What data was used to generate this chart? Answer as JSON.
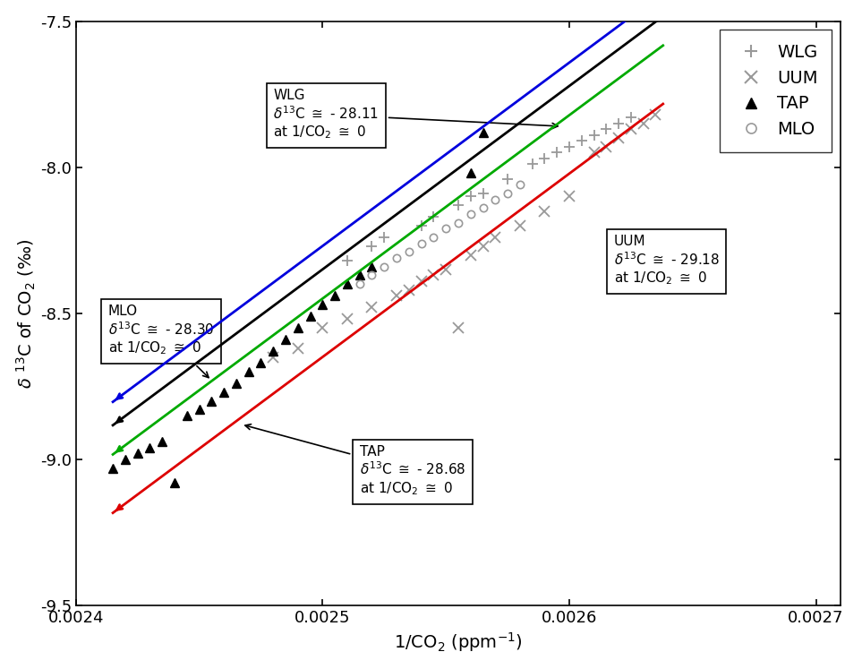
{
  "xlim": [
    0.0024,
    0.00271
  ],
  "ylim": [
    -9.5,
    -7.5
  ],
  "xlabel": "1/CO$_2$ (ppm$^{-1}$)",
  "ylabel": "$\\delta$ $^{13}$C of CO$_2$ (\\u2030)",
  "xticks": [
    0.0024,
    0.0025,
    0.0026,
    0.0027
  ],
  "yticks": [
    -9.5,
    -9.0,
    -8.5,
    -8.0,
    -7.5
  ],
  "WLG_x": [
    0.00251,
    0.00252,
    0.002525,
    0.00254,
    0.002545,
    0.002555,
    0.00256,
    0.002565,
    0.002575,
    0.002585,
    0.00259,
    0.002595,
    0.0026,
    0.002605,
    0.00261,
    0.002615,
    0.00262,
    0.002625
  ],
  "WLG_y": [
    -8.32,
    -8.27,
    -8.24,
    -8.2,
    -8.17,
    -8.13,
    -8.1,
    -8.09,
    -8.04,
    -7.99,
    -7.97,
    -7.95,
    -7.93,
    -7.91,
    -7.89,
    -7.87,
    -7.85,
    -7.83
  ],
  "UUM_x": [
    0.00248,
    0.00249,
    0.0025,
    0.00251,
    0.00252,
    0.00253,
    0.002535,
    0.00254,
    0.002545,
    0.00255,
    0.002555,
    0.00256,
    0.002565,
    0.00257,
    0.00258,
    0.00259,
    0.0026,
    0.00261,
    0.002615,
    0.00262,
    0.002625,
    0.00263,
    0.002635
  ],
  "UUM_y": [
    -8.65,
    -8.62,
    -8.55,
    -8.52,
    -8.48,
    -8.44,
    -8.42,
    -8.39,
    -8.37,
    -8.35,
    -8.55,
    -8.3,
    -8.27,
    -8.24,
    -8.2,
    -8.15,
    -8.1,
    -7.95,
    -7.93,
    -7.9,
    -7.87,
    -7.85,
    -7.82
  ],
  "TAP_x": [
    0.002415,
    0.00242,
    0.002425,
    0.00243,
    0.002435,
    0.00244,
    0.002445,
    0.00245,
    0.002455,
    0.00246,
    0.002465,
    0.00247,
    0.002475,
    0.00248,
    0.002485,
    0.00249,
    0.002495,
    0.0025,
    0.002505,
    0.00251,
    0.002515,
    0.00252,
    0.00256,
    0.002565
  ],
  "TAP_y": [
    -9.03,
    -9.0,
    -8.98,
    -8.96,
    -8.94,
    -9.08,
    -8.85,
    -8.83,
    -8.8,
    -8.77,
    -8.74,
    -8.7,
    -8.67,
    -8.63,
    -8.59,
    -8.55,
    -8.51,
    -8.47,
    -8.44,
    -8.4,
    -8.37,
    -8.34,
    -8.02,
    -7.88
  ],
  "MLO_x": [
    0.002515,
    0.00252,
    0.002525,
    0.00253,
    0.002535,
    0.00254,
    0.002545,
    0.00255,
    0.002555,
    0.00256,
    0.002565,
    0.00257,
    0.002575,
    0.00258
  ],
  "MLO_y": [
    -8.4,
    -8.37,
    -8.34,
    -8.31,
    -8.29,
    -8.26,
    -8.24,
    -8.21,
    -8.19,
    -8.16,
    -8.14,
    -8.11,
    -8.09,
    -8.06
  ],
  "intercept_WLG": -28.11,
  "intercept_UUM": -29.18,
  "intercept_TAP": -28.68,
  "intercept_MLO": -28.3,
  "color_WLG": "#0000dd",
  "color_UUM": "#dd0000",
  "color_TAP": "#00aa00",
  "color_MLO": "#000000",
  "x_line_start": 0.002415,
  "x_line_end": 0.002638,
  "background_color": "#ffffff"
}
